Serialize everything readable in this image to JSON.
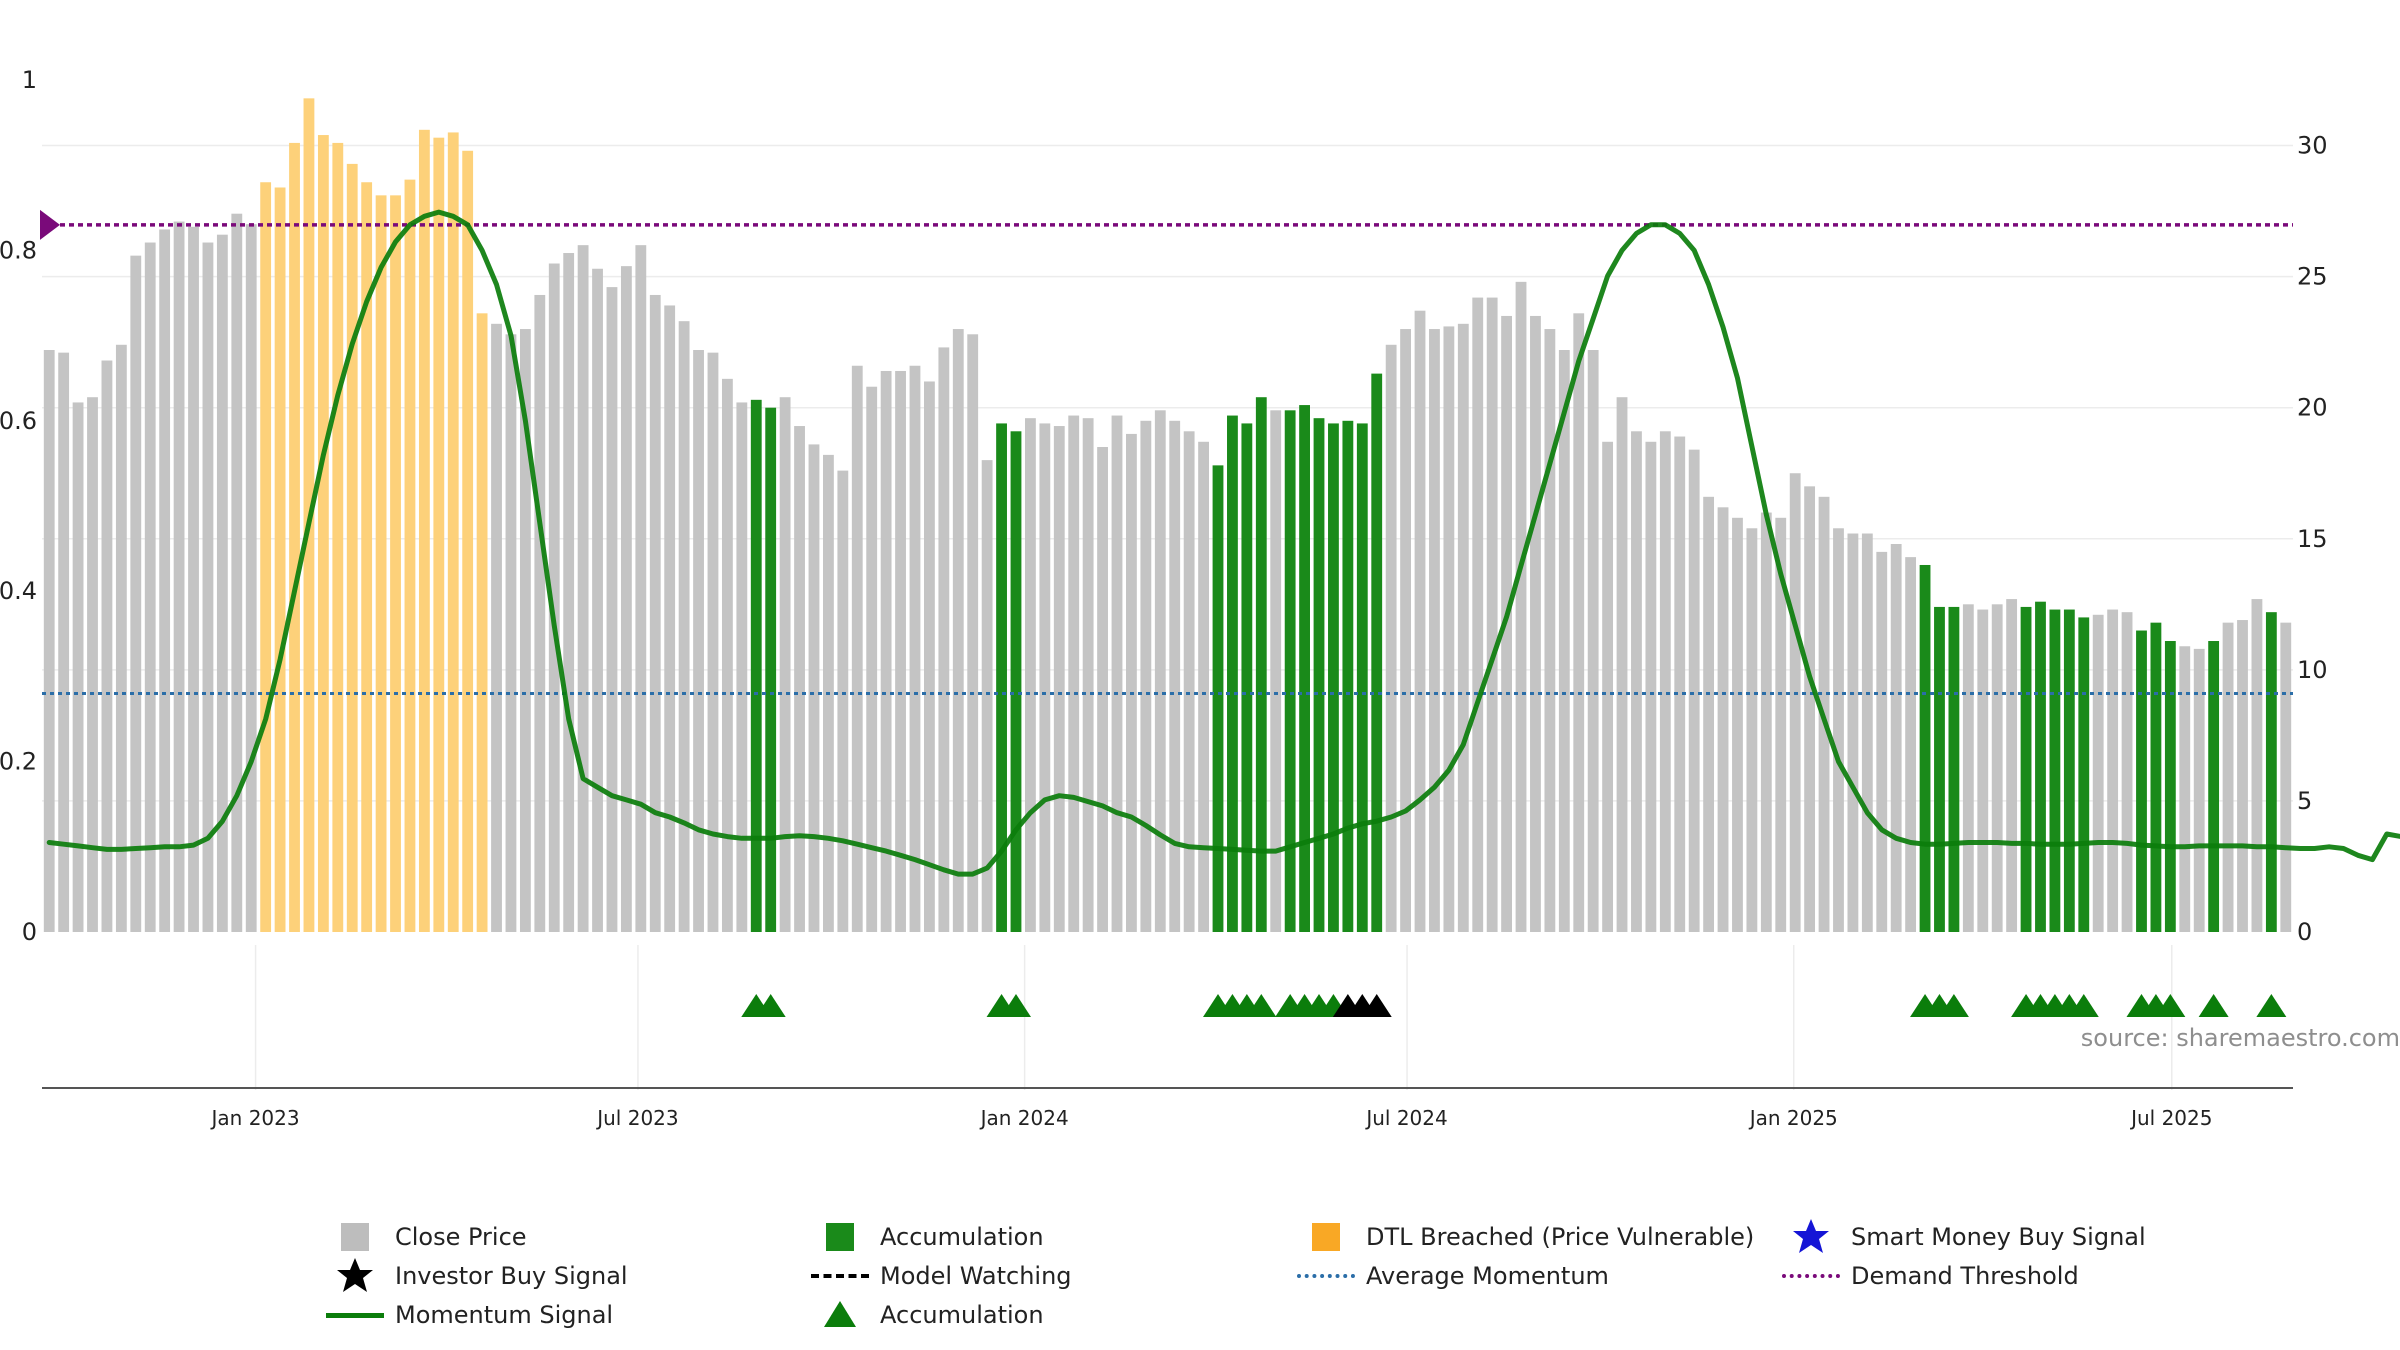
{
  "chart_data": {
    "type": "bar",
    "source_text": "source: sharemaestro.com",
    "left_axis": {
      "ticks": [
        "0",
        "0.2",
        "0.4",
        "0.6",
        "0.8",
        "1"
      ],
      "range": [
        0,
        1
      ]
    },
    "right_axis": {
      "ticks": [
        "0",
        "5",
        "10",
        "15",
        "20",
        "25",
        "30"
      ],
      "range": [
        0,
        30
      ]
    },
    "x_axis": {
      "ticks": [
        "Jan 2023",
        "Jul 2023",
        "Jan 2024",
        "Jul 2024",
        "Jan 2025",
        "Jul 2025"
      ]
    },
    "demand_threshold": 0.83,
    "average_momentum": 0.28,
    "colors": {
      "close": "#c4c4c4",
      "accumulation": "#1a8a1a",
      "dtl": "#fdd17a",
      "momentum": "#0b7d0b",
      "average": "#2b6ea8",
      "threshold": "#7a0a7a"
    },
    "close_price": [
      22.2,
      22.1,
      20.2,
      20.4,
      21.8,
      22.4,
      25.8,
      26.3,
      26.8,
      27.1,
      26.9,
      26.3,
      26.6,
      27.4,
      27.0,
      28.6,
      28.4,
      30.1,
      31.8,
      30.4,
      30.1,
      29.3,
      28.6,
      28.1,
      28.1,
      28.7,
      30.6,
      30.3,
      30.5,
      29.8,
      23.6,
      23.2,
      22.8,
      23.0,
      24.3,
      25.5,
      25.9,
      26.2,
      25.3,
      24.6,
      25.4,
      26.2,
      24.3,
      23.9,
      23.3,
      22.2,
      22.1,
      21.1,
      20.2,
      20.3,
      20.0,
      20.4,
      19.3,
      18.6,
      18.2,
      17.6,
      21.6,
      20.8,
      21.4,
      21.4,
      21.6,
      21.0,
      22.3,
      23.0,
      22.8,
      18.0,
      19.4,
      19.1,
      19.6,
      19.4,
      19.3,
      19.7,
      19.6,
      18.5,
      19.7,
      19.0,
      19.5,
      19.9,
      19.5,
      19.1,
      18.7,
      17.8,
      19.7,
      19.4,
      20.4,
      19.9,
      19.9,
      20.1,
      19.6,
      19.4,
      19.5,
      19.4,
      21.3,
      22.4,
      23.0,
      23.7,
      23.0,
      23.1,
      23.2,
      24.2,
      24.2,
      23.5,
      24.8,
      23.5,
      23.0,
      22.2,
      23.6,
      22.2,
      18.7,
      20.4,
      19.1,
      18.7,
      19.1,
      18.9,
      18.4,
      16.6,
      16.2,
      15.8,
      15.4,
      16.0,
      15.8,
      17.5,
      17.0,
      16.6,
      15.4,
      15.2,
      15.2,
      14.5,
      14.8,
      14.3,
      14.0,
      12.4,
      12.4,
      12.5,
      12.3,
      12.5,
      12.7,
      12.4,
      12.6,
      12.3,
      12.3,
      12.0,
      12.1,
      12.3,
      12.2,
      11.5,
      11.8,
      11.1,
      10.9,
      10.8,
      11.1,
      11.8,
      11.9,
      12.7,
      12.2,
      11.8
    ],
    "accumulation_bars": [
      49,
      50,
      66,
      67,
      81,
      82,
      83,
      84,
      86,
      87,
      88,
      89,
      90,
      91,
      92,
      130,
      131,
      132,
      137,
      138,
      139,
      140,
      141,
      145,
      146,
      147,
      150,
      154
    ],
    "dtl_bars": [
      15,
      16,
      17,
      18,
      19,
      20,
      21,
      22,
      23,
      24,
      25,
      26,
      27,
      28,
      29,
      30
    ],
    "momentum": [
      0.105,
      0.103,
      0.101,
      0.099,
      0.097,
      0.097,
      0.098,
      0.099,
      0.1,
      0.1,
      0.102,
      0.11,
      0.13,
      0.16,
      0.2,
      0.25,
      0.32,
      0.4,
      0.48,
      0.56,
      0.63,
      0.69,
      0.74,
      0.78,
      0.81,
      0.83,
      0.84,
      0.845,
      0.84,
      0.83,
      0.8,
      0.76,
      0.7,
      0.6,
      0.48,
      0.36,
      0.25,
      0.18,
      0.17,
      0.16,
      0.155,
      0.15,
      0.14,
      0.135,
      0.128,
      0.12,
      0.115,
      0.112,
      0.11,
      0.11,
      0.11,
      0.112,
      0.113,
      0.112,
      0.11,
      0.107,
      0.103,
      0.099,
      0.095,
      0.09,
      0.085,
      0.079,
      0.073,
      0.068,
      0.068,
      0.075,
      0.095,
      0.12,
      0.14,
      0.155,
      0.16,
      0.158,
      0.153,
      0.148,
      0.14,
      0.135,
      0.125,
      0.114,
      0.104,
      0.1,
      0.099,
      0.098,
      0.097,
      0.096,
      0.095,
      0.095,
      0.1,
      0.105,
      0.11,
      0.115,
      0.122,
      0.127,
      0.13,
      0.135,
      0.142,
      0.155,
      0.17,
      0.19,
      0.22,
      0.27,
      0.32,
      0.37,
      0.43,
      0.49,
      0.55,
      0.61,
      0.67,
      0.72,
      0.77,
      0.8,
      0.82,
      0.83,
      0.83,
      0.82,
      0.8,
      0.76,
      0.71,
      0.65,
      0.57,
      0.49,
      0.42,
      0.36,
      0.3,
      0.25,
      0.2,
      0.17,
      0.14,
      0.12,
      0.11,
      0.105,
      0.103,
      0.103,
      0.104,
      0.105,
      0.105,
      0.105,
      0.104,
      0.104,
      0.103,
      0.103,
      0.103,
      0.104,
      0.105,
      0.105,
      0.104,
      0.102,
      0.101,
      0.1,
      0.1,
      0.101,
      0.101,
      0.101,
      0.101,
      0.1,
      0.1,
      0.099,
      0.098,
      0.098,
      0.1,
      0.098,
      0.09,
      0.085,
      0.115,
      0.112,
      0.112
    ],
    "accumulation_markers": [
      49,
      50,
      66,
      67,
      81,
      82,
      83,
      84,
      86,
      87,
      88,
      89,
      130,
      131,
      132,
      137,
      138,
      139,
      140,
      141,
      145,
      146,
      147,
      150,
      154
    ],
    "investor_buy_markers": [
      90,
      91,
      92
    ]
  },
  "legend": [
    {
      "label": "Close Price",
      "symbol": "square-gray"
    },
    {
      "label": "Accumulation",
      "symbol": "square-green"
    },
    {
      "label": "DTL Breached (Price Vulnerable)",
      "symbol": "square-orange"
    },
    {
      "label": "Smart Money Buy Signal",
      "symbol": "star-blue"
    },
    {
      "label": "Investor Buy Signal",
      "symbol": "star-black"
    },
    {
      "label": "Model Watching",
      "symbol": "dash-black"
    },
    {
      "label": "Average Momentum",
      "symbol": "dot-blue"
    },
    {
      "label": "Demand Threshold",
      "symbol": "dot-purple"
    },
    {
      "label": "Momentum Signal",
      "symbol": "line-green"
    },
    {
      "label": "Accumulation",
      "symbol": "triangle-green"
    }
  ]
}
